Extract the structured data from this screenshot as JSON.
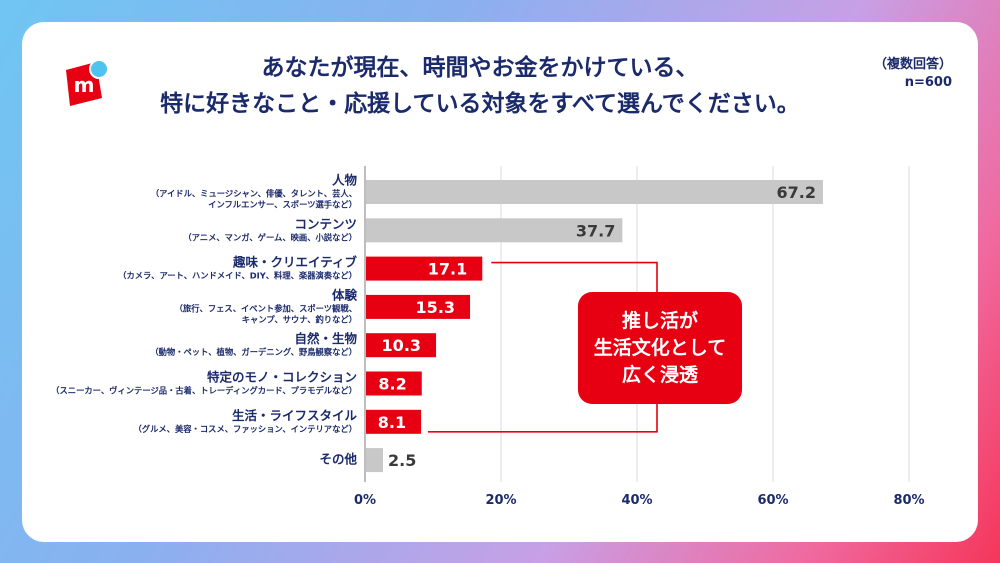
{
  "title": {
    "line1": "あなたが現在、時間やお金をかけている、",
    "line2": "特に好きなこと・応援している対象をすべて選んでください。"
  },
  "note": {
    "line1": "（複数回答）",
    "line2": "n=600"
  },
  "logo": {
    "icon": "mercari-logo",
    "color": "#e60012",
    "dot_color": "#4dc4f0"
  },
  "callout": {
    "lines": [
      "推し活が",
      "生活文化として",
      "広く浸透"
    ],
    "color": "#e60012"
  },
  "colors": {
    "highlight": "#e60012",
    "neutral": "#c8c8c8",
    "label": "#1b2a6b"
  },
  "chart_data": {
    "type": "bar",
    "orientation": "horizontal",
    "unit": "%",
    "categories": [
      {
        "name": "人物",
        "sub": [
          "（アイドル、ミュージシャン、俳優、タレント、芸人、",
          "インフルエンサー、スポーツ選手など）"
        ]
      },
      {
        "name": "コンテンツ",
        "sub": [
          "（アニメ、マンガ、ゲーム、映画、小説など）"
        ]
      },
      {
        "name": "趣味・クリエイティブ",
        "sub": [
          "（カメラ、アート、ハンドメイド、DIY、料理、楽器演奏など）"
        ]
      },
      {
        "name": "体験",
        "sub": [
          "（旅行、フェス、イベント参加、スポーツ観戦、",
          "キャンプ、サウナ、釣りなど）"
        ]
      },
      {
        "name": "自然・生物",
        "sub": [
          "（動物・ペット、植物、ガーデニング、野鳥観察など）"
        ]
      },
      {
        "name": "特定のモノ・コレクション",
        "sub": [
          "（スニーカー、ヴィンテージ品・古着、トレーディングカード、プラモデルなど）"
        ]
      },
      {
        "name": "生活・ライフスタイル",
        "sub": [
          "（グルメ、美容・コスメ、ファッション、インテリアなど）"
        ]
      },
      {
        "name": "その他",
        "sub": []
      }
    ],
    "values": [
      67.2,
      37.7,
      17.1,
      15.3,
      10.3,
      8.2,
      8.1,
      2.5
    ],
    "highlighted": [
      false,
      false,
      true,
      true,
      true,
      true,
      true,
      false
    ],
    "xlim": [
      0,
      80
    ],
    "xticks": [
      0,
      20,
      40,
      60,
      80
    ],
    "xtick_labels": [
      "0%",
      "20%",
      "40%",
      "60%",
      "80%"
    ],
    "grid": true
  }
}
